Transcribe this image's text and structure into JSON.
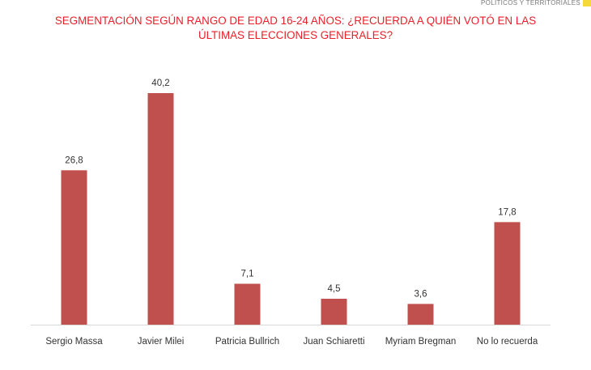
{
  "header_tag": {
    "text": "POLÍTICOS Y TERRITORIALES",
    "accent_color": "#f5d83a"
  },
  "colors": {
    "title": "#e8202a",
    "bar": "#c0504d",
    "label": "#333333",
    "axis": "#d9d9d9"
  },
  "chart_data": {
    "type": "bar",
    "title_lines": [
      "SEGMENTACIÓN SEGÚN RANGO DE EDAD 16-24 AÑOS: ¿RECUERDA A QUIÉN VOTÓ EN LAS",
      "ÚLTIMAS ELECCIONES GENERALES?"
    ],
    "categories": [
      "Sergio Massa",
      "Javier Milei",
      "Patricia Bullrich",
      "Juan Schiaretti",
      "Myriam Bregman",
      "No lo recuerda"
    ],
    "values": [
      26.8,
      40.2,
      7.1,
      4.5,
      3.6,
      17.8
    ],
    "value_labels": [
      "26,8",
      "40,2",
      "7,1",
      "4,5",
      "3,6",
      "17,8"
    ],
    "ylim": [
      0,
      40.2
    ],
    "grid": false,
    "legend": "none"
  }
}
